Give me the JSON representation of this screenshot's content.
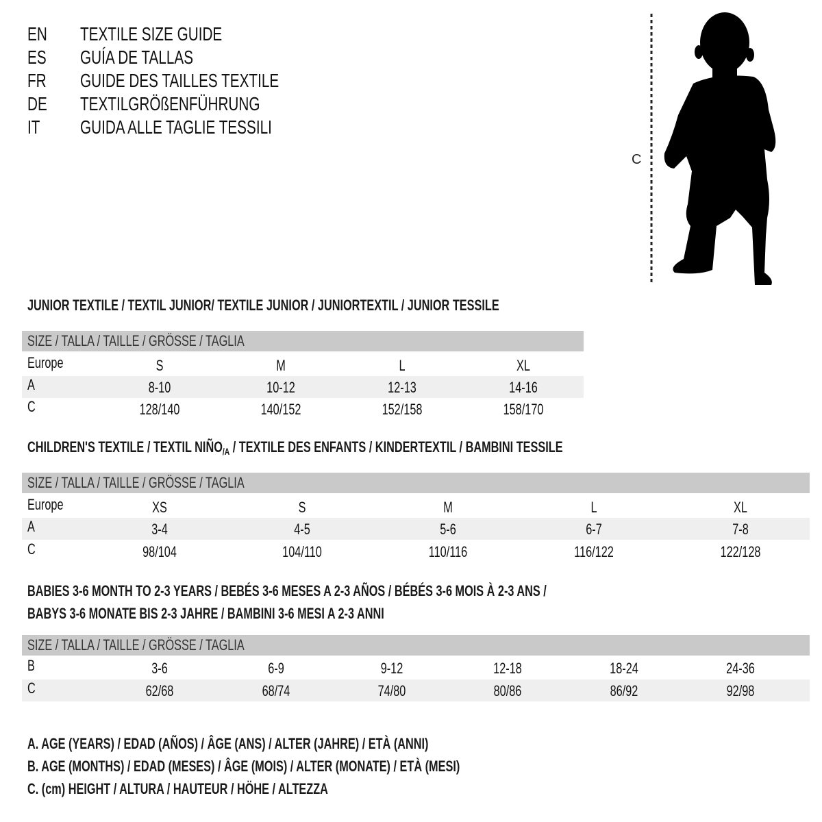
{
  "title_lines": [
    {
      "lang": "EN",
      "text": "TEXTILE SIZE GUIDE"
    },
    {
      "lang": "ES",
      "text": "GUÍA DE TALLAS"
    },
    {
      "lang": "FR",
      "text": "GUIDE DES TAILLES TEXTILE"
    },
    {
      "lang": "DE",
      "text": "TEXTILGRÖßENFÜHRUNG"
    },
    {
      "lang": "IT",
      "text": "GUIDA ALLE TAGLIE TESSILI"
    }
  ],
  "figure": {
    "measure_label": "C"
  },
  "tables": [
    {
      "section_title": "JUNIOR TEXTILE / TEXTIL JUNIOR/ TEXTILE JUNIOR / JUNIORTEXTIL / JUNIOR TESSILE",
      "header": "SIZE / TALLA / TAILLE / GRÖSSE / TAGLIA",
      "rows": [
        {
          "label": "Europe",
          "cells": [
            "S",
            "M",
            "L",
            "XL"
          ]
        },
        {
          "label": "A",
          "cells": [
            "8-10",
            "10-12",
            "12-13",
            "14-16"
          ]
        },
        {
          "label": "C",
          "cells": [
            "128/140",
            "140/152",
            "152/158",
            "158/170"
          ]
        }
      ]
    },
    {
      "section_title": "CHILDREN'S TEXTILE / TEXTIL NIÑO",
      "section_title_sub": "/A",
      "section_title_rest": " / TEXTILE DES ENFANTS / KINDERTEXTIL / BAMBINI TESSILE",
      "header": "SIZE / TALLA / TAILLE / GRÖSSE / TAGLIA",
      "rows": [
        {
          "label": "Europe",
          "cells": [
            "XS",
            "S",
            "M",
            "L",
            "XL"
          ]
        },
        {
          "label": "A",
          "cells": [
            "3-4",
            "4-5",
            "5-6",
            "6-7",
            "7-8"
          ]
        },
        {
          "label": "C",
          "cells": [
            "98/104",
            "104/110",
            "110/116",
            "116/122",
            "122/128"
          ]
        }
      ]
    },
    {
      "section_title": "BABIES 3-6 MONTH TO 2-3 YEARS / BEBÉS 3-6 MESES A 2-3 AÑOS / BÉBÉS 3-6 MOIS À 2-3 ANS /",
      "section_title_line2": "BABYS 3-6 MONATE BIS 2-3 JAHRE / BAMBINI 3-6 MESI A 2-3 ANNI",
      "header": "SIZE / TALLA / TAILLE / GRÖSSE / TAGLIA",
      "rows": [
        {
          "label": "B",
          "cells": [
            "3-6",
            "6-9",
            "9-12",
            "12-18",
            "18-24",
            "24-36"
          ]
        },
        {
          "label": "C",
          "cells": [
            "62/68",
            "68/74",
            "74/80",
            "80/86",
            "86/92",
            "92/98"
          ]
        }
      ]
    }
  ],
  "legend": [
    "A. AGE (YEARS) / EDAD (AÑOS) / ÂGE (ANS) / ALTER (JAHRE) / ETÀ (ANNI)",
    "B. AGE (MONTHS) / EDAD (MESES) / ÂGE (MOIS) / ALTER (MONATE) / ETÀ (MESI)",
    "C. (cm) HEIGHT / ALTURA / HAUTEUR / HÖHE / ALTEZZA"
  ],
  "colors": {
    "header_band": "#c9c9c9",
    "alt_row": "#efefef",
    "text": "#111111"
  }
}
